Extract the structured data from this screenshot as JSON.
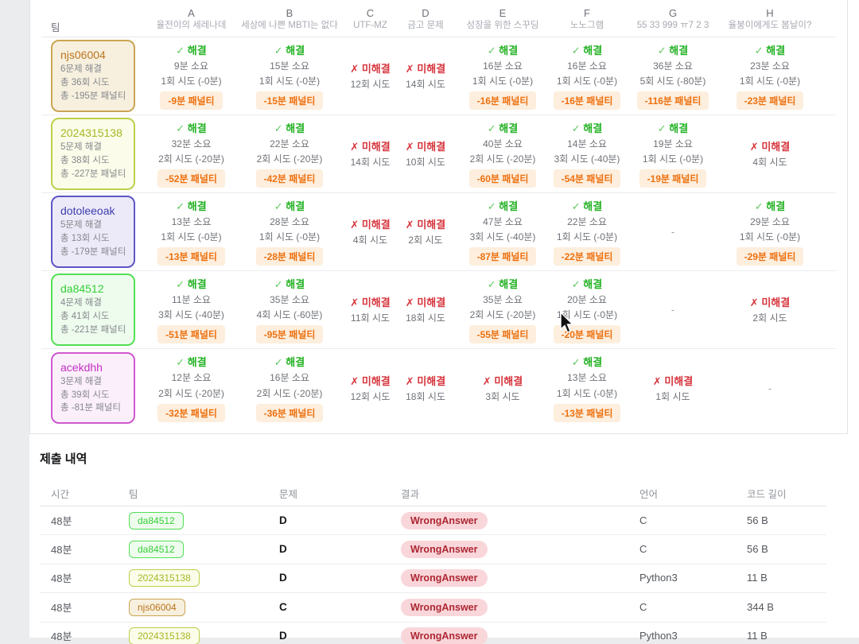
{
  "labels": {
    "check": "✓",
    "cross": "✗",
    "solved": "해결",
    "unsolved": "미해결",
    "dash": "-"
  },
  "colors": {
    "solved_green": "#23b223",
    "unsolved_red": "#d6343c",
    "penalty_text": "#ed700f",
    "penalty_bg": "#fdeedd",
    "result_pill_text": "#ad2733",
    "result_pill_bg": "#f9d6da"
  },
  "scoreboard": {
    "team_header": "팀",
    "problems": [
      {
        "letter": "A",
        "title": "율전이의 세레나데"
      },
      {
        "letter": "B",
        "title": "세상에 나쁜 MBTI는 없다"
      },
      {
        "letter": "C",
        "title": "UTF-MZ"
      },
      {
        "letter": "D",
        "title": "금고 문제"
      },
      {
        "letter": "E",
        "title": "성장을 위한 스꾸딩"
      },
      {
        "letter": "F",
        "title": "노노그램"
      },
      {
        "letter": "G",
        "title": "55 33 999 ㅠ7 2 3"
      },
      {
        "letter": "H",
        "title": "율붕이에게도 봄날이?"
      }
    ],
    "teams": [
      {
        "name": "njs06004",
        "solved_line": "6문제 해결",
        "attempts_line": "총 36회 시도",
        "penalty_line": "총 -195분 패널티",
        "theme": {
          "text": "#bc7420",
          "border": "#caa553",
          "bg": "#f7f0de"
        },
        "cells": [
          {
            "status": "solved",
            "time": "9분 소요",
            "tries": "1회 시도 (-0분)",
            "penalty": "-9분 패널티"
          },
          {
            "status": "solved",
            "time": "15분 소요",
            "tries": "1회 시도 (-0분)",
            "penalty": "-15분 패널티"
          },
          {
            "status": "unsolved",
            "tries": "12회 시도"
          },
          {
            "status": "unsolved",
            "tries": "14회 시도"
          },
          {
            "status": "solved",
            "time": "16분 소요",
            "tries": "1회 시도 (-0분)",
            "penalty": "-16분 패널티"
          },
          {
            "status": "solved",
            "time": "16분 소요",
            "tries": "1회 시도 (-0분)",
            "penalty": "-16분 패널티"
          },
          {
            "status": "solved",
            "time": "36분 소요",
            "tries": "5회 시도 (-80분)",
            "penalty": "-116분 패널티"
          },
          {
            "status": "solved",
            "time": "23분 소요",
            "tries": "1회 시도 (-0분)",
            "penalty": "-23분 패널티"
          }
        ]
      },
      {
        "name": "2024315138",
        "solved_line": "5문제 해결",
        "attempts_line": "총 38회 시도",
        "penalty_line": "총 -227분 패널티",
        "theme": {
          "text": "#a6b824",
          "border": "#bdd04a",
          "bg": "#fbfce9"
        },
        "cells": [
          {
            "status": "solved",
            "time": "32분 소요",
            "tries": "2회 시도 (-20분)",
            "penalty": "-52분 패널티"
          },
          {
            "status": "solved",
            "time": "22분 소요",
            "tries": "2회 시도 (-20분)",
            "penalty": "-42분 패널티"
          },
          {
            "status": "unsolved",
            "tries": "14회 시도"
          },
          {
            "status": "unsolved",
            "tries": "10회 시도"
          },
          {
            "status": "solved",
            "time": "40분 소요",
            "tries": "2회 시도 (-20분)",
            "penalty": "-60분 패널티"
          },
          {
            "status": "solved",
            "time": "14분 소요",
            "tries": "3회 시도 (-40분)",
            "penalty": "-54분 패널티"
          },
          {
            "status": "solved",
            "time": "19분 소요",
            "tries": "1회 시도 (-0분)",
            "penalty": "-19분 패널티"
          },
          {
            "status": "unsolved",
            "tries": "4회 시도"
          }
        ]
      },
      {
        "name": "dotoleeoak",
        "solved_line": "5문제 해결",
        "attempts_line": "총 13회 시도",
        "penalty_line": "총 -179분 패널티",
        "theme": {
          "text": "#3d3dae",
          "border": "#5e55c6",
          "bg": "#eceaf8"
        },
        "cells": [
          {
            "status": "solved",
            "time": "13분 소요",
            "tries": "1회 시도 (-0분)",
            "penalty": "-13분 패널티"
          },
          {
            "status": "solved",
            "time": "28분 소요",
            "tries": "1회 시도 (-0분)",
            "penalty": "-28분 패널티"
          },
          {
            "status": "unsolved",
            "tries": "4회 시도"
          },
          {
            "status": "unsolved",
            "tries": "2회 시도"
          },
          {
            "status": "solved",
            "time": "47분 소요",
            "tries": "3회 시도 (-40분)",
            "penalty": "-87분 패널티"
          },
          {
            "status": "solved",
            "time": "22분 소요",
            "tries": "1회 시도 (-0분)",
            "penalty": "-22분 패널티"
          },
          {
            "status": "empty"
          },
          {
            "status": "solved",
            "time": "29분 소요",
            "tries": "1회 시도 (-0분)",
            "penalty": "-29분 패널티"
          }
        ]
      },
      {
        "name": "da84512",
        "solved_line": "4문제 해결",
        "attempts_line": "총 41회 시도",
        "penalty_line": "총 -221분 패널티",
        "theme": {
          "text": "#36cf36",
          "border": "#54df54",
          "bg": "#eefcee"
        },
        "cells": [
          {
            "status": "solved",
            "time": "11분 소요",
            "tries": "3회 시도 (-40분)",
            "penalty": "-51분 패널티"
          },
          {
            "status": "solved",
            "time": "35분 소요",
            "tries": "4회 시도 (-60분)",
            "penalty": "-95분 패널티"
          },
          {
            "status": "unsolved",
            "tries": "11회 시도"
          },
          {
            "status": "unsolved",
            "tries": "18회 시도"
          },
          {
            "status": "solved",
            "time": "35분 소요",
            "tries": "2회 시도 (-20분)",
            "penalty": "-55분 패널티"
          },
          {
            "status": "solved",
            "time": "20분 소요",
            "tries": "1회 시도 (-0분)",
            "penalty": "-20분 패널티"
          },
          {
            "status": "empty"
          },
          {
            "status": "unsolved",
            "tries": "2회 시도"
          }
        ]
      },
      {
        "name": "acekdhh",
        "solved_line": "3문제 해결",
        "attempts_line": "총 39회 시도",
        "penalty_line": "총 -81분 패널티",
        "theme": {
          "text": "#c32fc3",
          "border": "#d058d0",
          "bg": "#fbeffb"
        },
        "cells": [
          {
            "status": "solved",
            "time": "12분 소요",
            "tries": "2회 시도 (-20분)",
            "penalty": "-32분 패널티"
          },
          {
            "status": "solved",
            "time": "16분 소요",
            "tries": "2회 시도 (-20분)",
            "penalty": "-36분 패널티"
          },
          {
            "status": "unsolved",
            "tries": "12회 시도"
          },
          {
            "status": "unsolved",
            "tries": "18회 시도"
          },
          {
            "status": "unsolved",
            "tries": "3회 시도"
          },
          {
            "status": "solved",
            "time": "13분 소요",
            "tries": "1회 시도 (-0분)",
            "penalty": "-13분 패널티"
          },
          {
            "status": "unsolved",
            "tries": "1회 시도"
          },
          {
            "status": "empty"
          }
        ]
      }
    ]
  },
  "submissions": {
    "heading": "제출 내역",
    "columns": [
      "시간",
      "팀",
      "문제",
      "결과",
      "언어",
      "코드 길이"
    ],
    "rows": [
      {
        "time": "48분",
        "team": "da84512",
        "problem": "D",
        "result": "WrongAnswer",
        "language": "C",
        "code_length": "56 B"
      },
      {
        "time": "48분",
        "team": "da84512",
        "problem": "D",
        "result": "WrongAnswer",
        "language": "C",
        "code_length": "56 B"
      },
      {
        "time": "48분",
        "team": "2024315138",
        "problem": "D",
        "result": "WrongAnswer",
        "language": "Python3",
        "code_length": "11 B"
      },
      {
        "time": "48분",
        "team": "njs06004",
        "problem": "C",
        "result": "WrongAnswer",
        "language": "C",
        "code_length": "344 B"
      },
      {
        "time": "48분",
        "team": "2024315138",
        "problem": "D",
        "result": "WrongAnswer",
        "language": "Python3",
        "code_length": "11 B"
      }
    ]
  }
}
